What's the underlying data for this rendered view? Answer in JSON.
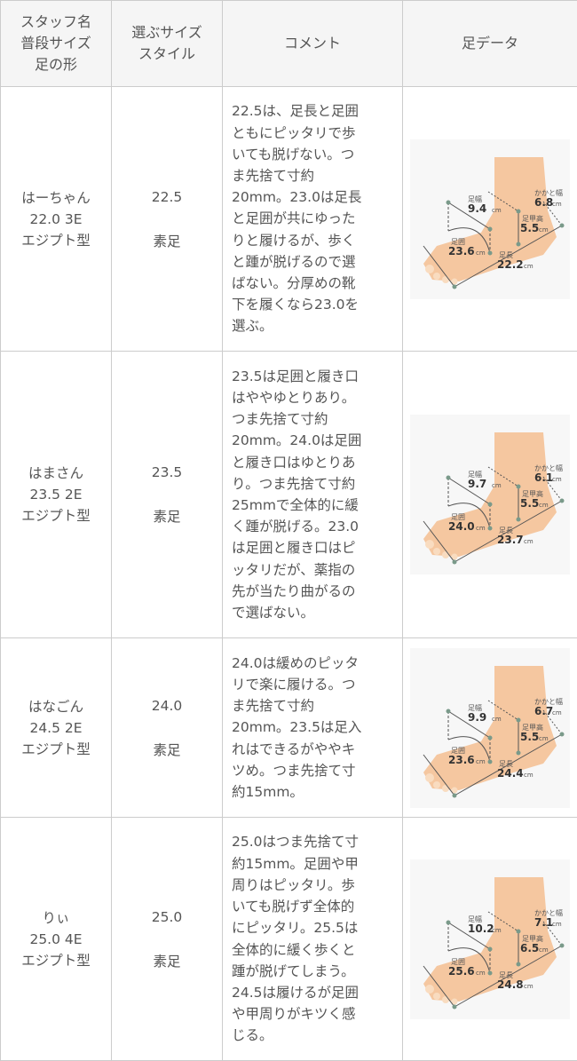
{
  "header": {
    "col1": [
      "スタッフ名",
      "普段サイズ",
      "足の形"
    ],
    "col2": [
      "選ぶサイズ",
      "スタイル"
    ],
    "col3": "コメント",
    "col4": "足データ"
  },
  "foot_labels": {
    "width": "足幅",
    "heel": "かかと幅",
    "instep": "足甲高",
    "girth": "足囲",
    "length": "足長",
    "unit": "cm"
  },
  "colors": {
    "skin": "#f5c7a0",
    "header_bg": "#f5f5f5",
    "border": "#cccccc"
  },
  "rows": [
    {
      "name": "はーちゃん",
      "usual": "22.0 3E",
      "shape": "エジプト型",
      "size": "22.5",
      "style": "素足",
      "comment": "22.5は、足長と足囲\nともにピッタリで歩\nいても脱げない。つ\nま先捨て寸約\n20mm。23.0は足長\nと足囲が共にゆった\nりと履けるが、歩く\nと踵が脱げるので選\nばない。分厚めの靴\n下を履くなら23.0を\n選ぶ。",
      "foot": {
        "width": "9.4",
        "heel": "6.8",
        "instep": "5.5",
        "girth": "23.6",
        "length": "22.2"
      }
    },
    {
      "name": "はまさん",
      "usual": "23.5 2E",
      "shape": "エジプト型",
      "size": "23.5",
      "style": "素足",
      "comment": "23.5は足囲と履き口\nはややゆとりあり。\nつま先捨て寸約\n20mm。24.0は足囲\nと履き口はゆとりあ\nり。つま先捨て寸約\n25mmで全体的に緩\nく踵が脱げる。23.0\nは足囲と履き口はピ\nッタリだが、薬指の\n先が当たり曲がるの\nで選ばない。",
      "foot": {
        "width": "9.7",
        "heel": "6.1",
        "instep": "5.5",
        "girth": "24.0",
        "length": "23.7"
      }
    },
    {
      "name": "はなごん",
      "usual": "24.5 2E",
      "shape": "エジプト型",
      "size": "24.0",
      "style": "素足",
      "comment": "24.0は緩めのピッタ\nリで楽に履ける。つ\nま先捨て寸約\n20mm。23.5は足入\nれはできるがややキ\nツめ。つま先捨て寸\n約15mm。",
      "foot": {
        "width": "9.9",
        "heel": "6.7",
        "instep": "5.5",
        "girth": "23.6",
        "length": "24.4"
      }
    },
    {
      "name": "りぃ",
      "usual": "25.0 4E",
      "shape": "エジプト型",
      "size": "25.0",
      "style": "素足",
      "comment": "25.0はつま先捨て寸\n約15mm。足囲や甲\n周りはピッタリ。歩\nいても脱げず全体的\nにピッタリ。25.5は\n全体的に緩く歩くと\n踵が脱げてしまう。\n24.5は履けるが足囲\nや甲周りがキツく感\nじる。",
      "foot": {
        "width": "10.2",
        "heel": "7.1",
        "instep": "6.5",
        "girth": "25.6",
        "length": "24.8"
      }
    }
  ]
}
